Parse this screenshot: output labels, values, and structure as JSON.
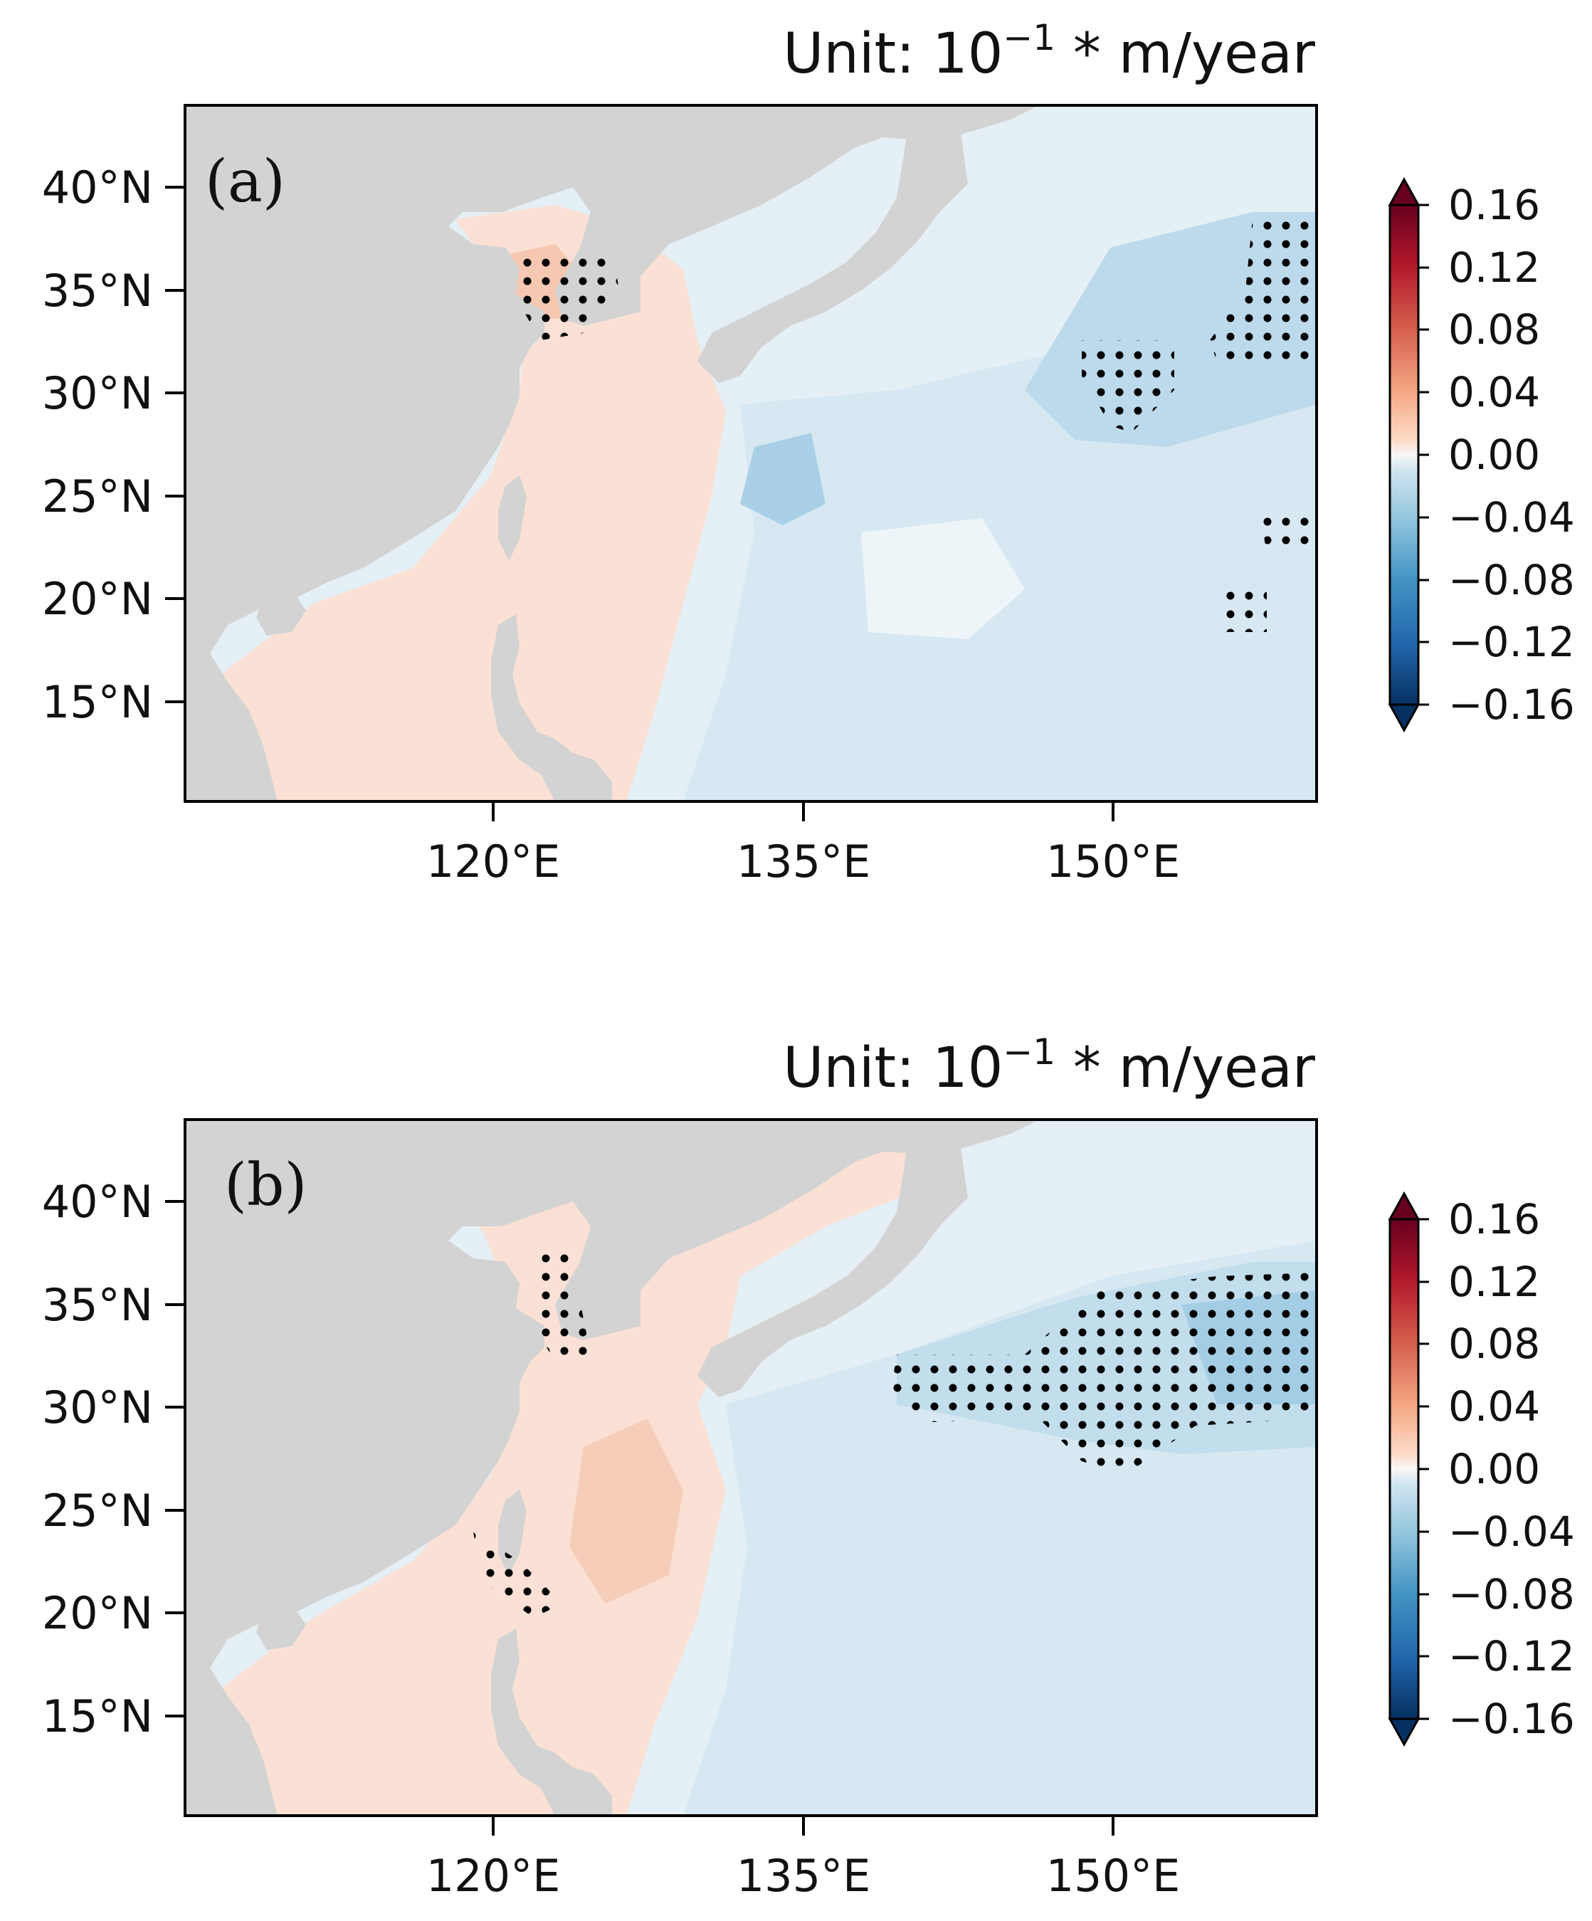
{
  "panels": [
    {
      "id": "a",
      "label": "(a)",
      "title_prefix": "Unit: 10",
      "title_exp": "−1",
      "title_suffix": " * m/year",
      "lat_ticks": [
        "40°N",
        "35°N",
        "30°N",
        "25°N",
        "20°N",
        "15°N"
      ],
      "lon_ticks": [
        "120°E",
        "135°E",
        "150°E"
      ],
      "colorbar_ticks": [
        "0.16",
        "0.12",
        "0.08",
        "0.04",
        "0.00",
        "−0.04",
        "−0.08",
        "−0.12",
        "−0.16"
      ]
    },
    {
      "id": "b",
      "label": "(b)",
      "title_prefix": "Unit: 10",
      "title_exp": "−1",
      "title_suffix": " * m/year",
      "lat_ticks": [
        "40°N",
        "35°N",
        "30°N",
        "25°N",
        "20°N",
        "15°N"
      ],
      "lon_ticks": [
        "120°E",
        "135°E",
        "150°E"
      ],
      "colorbar_ticks": [
        "0.16",
        "0.12",
        "0.08",
        "0.04",
        "0.00",
        "−0.04",
        "−0.08",
        "−0.12",
        "−0.16"
      ]
    }
  ],
  "map": {
    "lon_range": [
      105,
      160
    ],
    "lat_range": [
      10,
      44
    ],
    "land_color": "#d3d3d3",
    "colormap": "RdBu_r",
    "colorbar_range": [
      -0.16,
      0.16
    ]
  }
}
